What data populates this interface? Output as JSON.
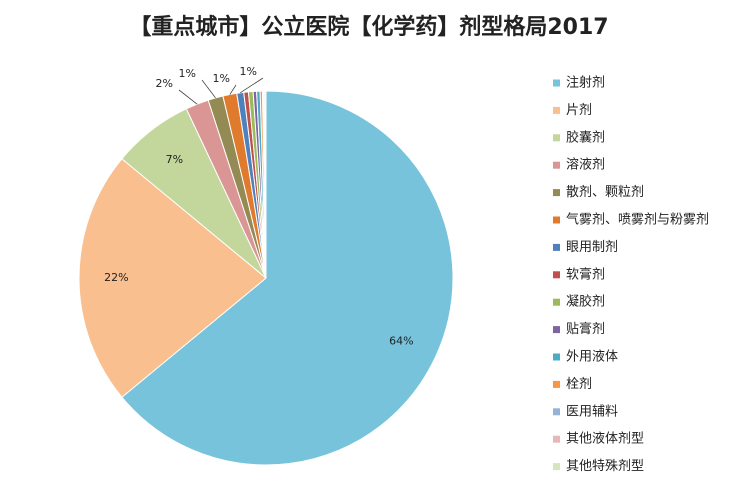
{
  "chart_data": {
    "type": "pie",
    "title": "【重点城市】公立医院【化学药】剂型格局2017",
    "categories": [
      "注射剂",
      "片剂",
      "胶囊剂",
      "溶液剂",
      "散剂、颗粒剂",
      "气雾剂、喷雾剂与粉雾剂",
      "眼用制剂",
      "软膏剂",
      "凝胶剂",
      "贴膏剂",
      "外用液体",
      "栓剂",
      "医用辅料",
      "其他液体剂型",
      "其他特殊剂型"
    ],
    "values": [
      64,
      22,
      7,
      2,
      1.3,
      1.2,
      0.6,
      0.4,
      0.4,
      0.3,
      0.3,
      0.2,
      0.1,
      0.1,
      0.1
    ],
    "value_labels": [
      "64%",
      "22%",
      "7%",
      "2%",
      "1%",
      "1%",
      "1%",
      null,
      null,
      null,
      null,
      null,
      null,
      null,
      null
    ],
    "colors": [
      "#78c3dc",
      "#f9bf8f",
      "#c3d69b",
      "#d99694",
      "#948a54",
      "#e07b2e",
      "#4f81bd",
      "#c0504d",
      "#9bbb59",
      "#8064a2",
      "#4bacc6",
      "#f79646",
      "#95b3d7",
      "#e6b9b8",
      "#d7e4bd"
    ],
    "legend": "right"
  }
}
